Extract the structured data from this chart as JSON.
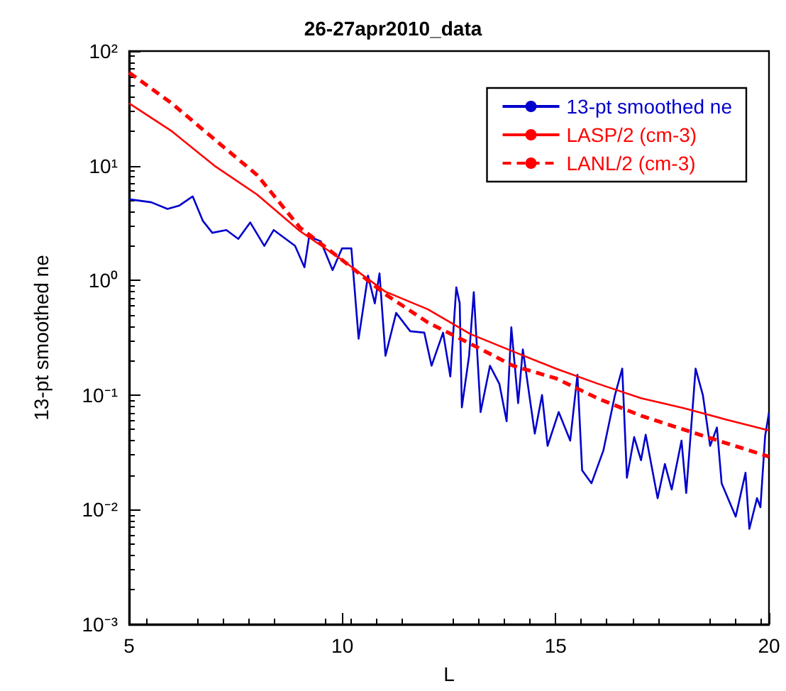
{
  "chart_data": {
    "type": "line",
    "title": "26-27apr2010_data",
    "xlabel": "L",
    "ylabel": "13-pt smoothed ne",
    "xlim": [
      5,
      20
    ],
    "xticks": [
      5,
      10,
      15,
      20
    ],
    "ylim": [
      0.001,
      100
    ],
    "yticks": [
      {
        "value": 0.001,
        "label": "10⁻³"
      },
      {
        "value": 0.01,
        "label": "10⁻²"
      },
      {
        "value": 0.1,
        "label": "10⁻¹"
      },
      {
        "value": 1,
        "label": "10⁰"
      },
      {
        "value": 10,
        "label": "10¹"
      },
      {
        "value": 100,
        "label": "10²"
      }
    ],
    "log": "y",
    "grid": false,
    "legend": "top right",
    "marker": "none",
    "series": [
      {
        "name": "13-pt smoothed ne",
        "color": "#0000cc",
        "line_style": "solid",
        "x": [
          5.0,
          5.52,
          5.9,
          6.18,
          6.49,
          6.73,
          6.95,
          7.28,
          7.56,
          7.84,
          8.17,
          8.39,
          8.89,
          9.11,
          9.22,
          9.49,
          9.77,
          9.99,
          10.21,
          10.38,
          10.6,
          10.76,
          10.87,
          11.01,
          11.26,
          11.59,
          11.92,
          12.09,
          12.36,
          12.53,
          12.67,
          12.75,
          12.8,
          12.97,
          13.08,
          13.24,
          13.46,
          13.68,
          13.85,
          13.96,
          14.12,
          14.23,
          14.51,
          14.68,
          14.81,
          15.07,
          15.34,
          15.51,
          15.62,
          15.84,
          16.12,
          16.39,
          16.56,
          16.67,
          16.84,
          17.0,
          17.11,
          17.39,
          17.56,
          17.72,
          17.95,
          18.06,
          18.28,
          18.45,
          18.62,
          18.78,
          18.89,
          19.22,
          19.45,
          19.54,
          19.72,
          19.8,
          19.91,
          20.0
        ],
        "values": [
          5.1,
          4.8,
          4.2,
          4.5,
          5.4,
          3.3,
          2.6,
          2.75,
          2.3,
          3.2,
          2.0,
          2.75,
          2.0,
          1.3,
          2.4,
          2.2,
          1.23,
          1.9,
          1.9,
          0.31,
          1.1,
          0.63,
          1.15,
          0.22,
          0.52,
          0.36,
          0.35,
          0.18,
          0.35,
          0.145,
          0.87,
          0.63,
          0.078,
          0.22,
          0.79,
          0.071,
          0.18,
          0.125,
          0.059,
          0.39,
          0.085,
          0.25,
          0.046,
          0.1,
          0.036,
          0.071,
          0.04,
          0.15,
          0.022,
          0.017,
          0.033,
          0.1,
          0.17,
          0.019,
          0.043,
          0.027,
          0.045,
          0.0126,
          0.025,
          0.015,
          0.04,
          0.014,
          0.17,
          0.1,
          0.036,
          0.052,
          0.017,
          0.0087,
          0.021,
          0.0068,
          0.0126,
          0.0105,
          0.044,
          0.07
        ]
      },
      {
        "name": "LASP/2 (cm-3)",
        "color": "#ff0000",
        "line_style": "solid",
        "x": [
          5,
          6,
          7,
          8,
          9,
          10,
          11,
          12,
          13,
          14,
          15,
          16,
          17,
          18,
          19,
          20
        ],
        "values": [
          35,
          20,
          10,
          5.6,
          2.7,
          1.5,
          0.8,
          0.56,
          0.34,
          0.24,
          0.17,
          0.125,
          0.094,
          0.077,
          0.061,
          0.049
        ]
      },
      {
        "name": "LANL/2 (cm-3)",
        "color": "#ff0000",
        "line_style": "dashed",
        "x": [
          5,
          6,
          7,
          8,
          9,
          10,
          11,
          12,
          13,
          14,
          15,
          16,
          17,
          18,
          19,
          20
        ],
        "values": [
          65,
          35,
          17,
          8.3,
          2.9,
          1.5,
          0.76,
          0.43,
          0.28,
          0.18,
          0.14,
          0.093,
          0.066,
          0.05,
          0.038,
          0.029
        ]
      }
    ]
  }
}
